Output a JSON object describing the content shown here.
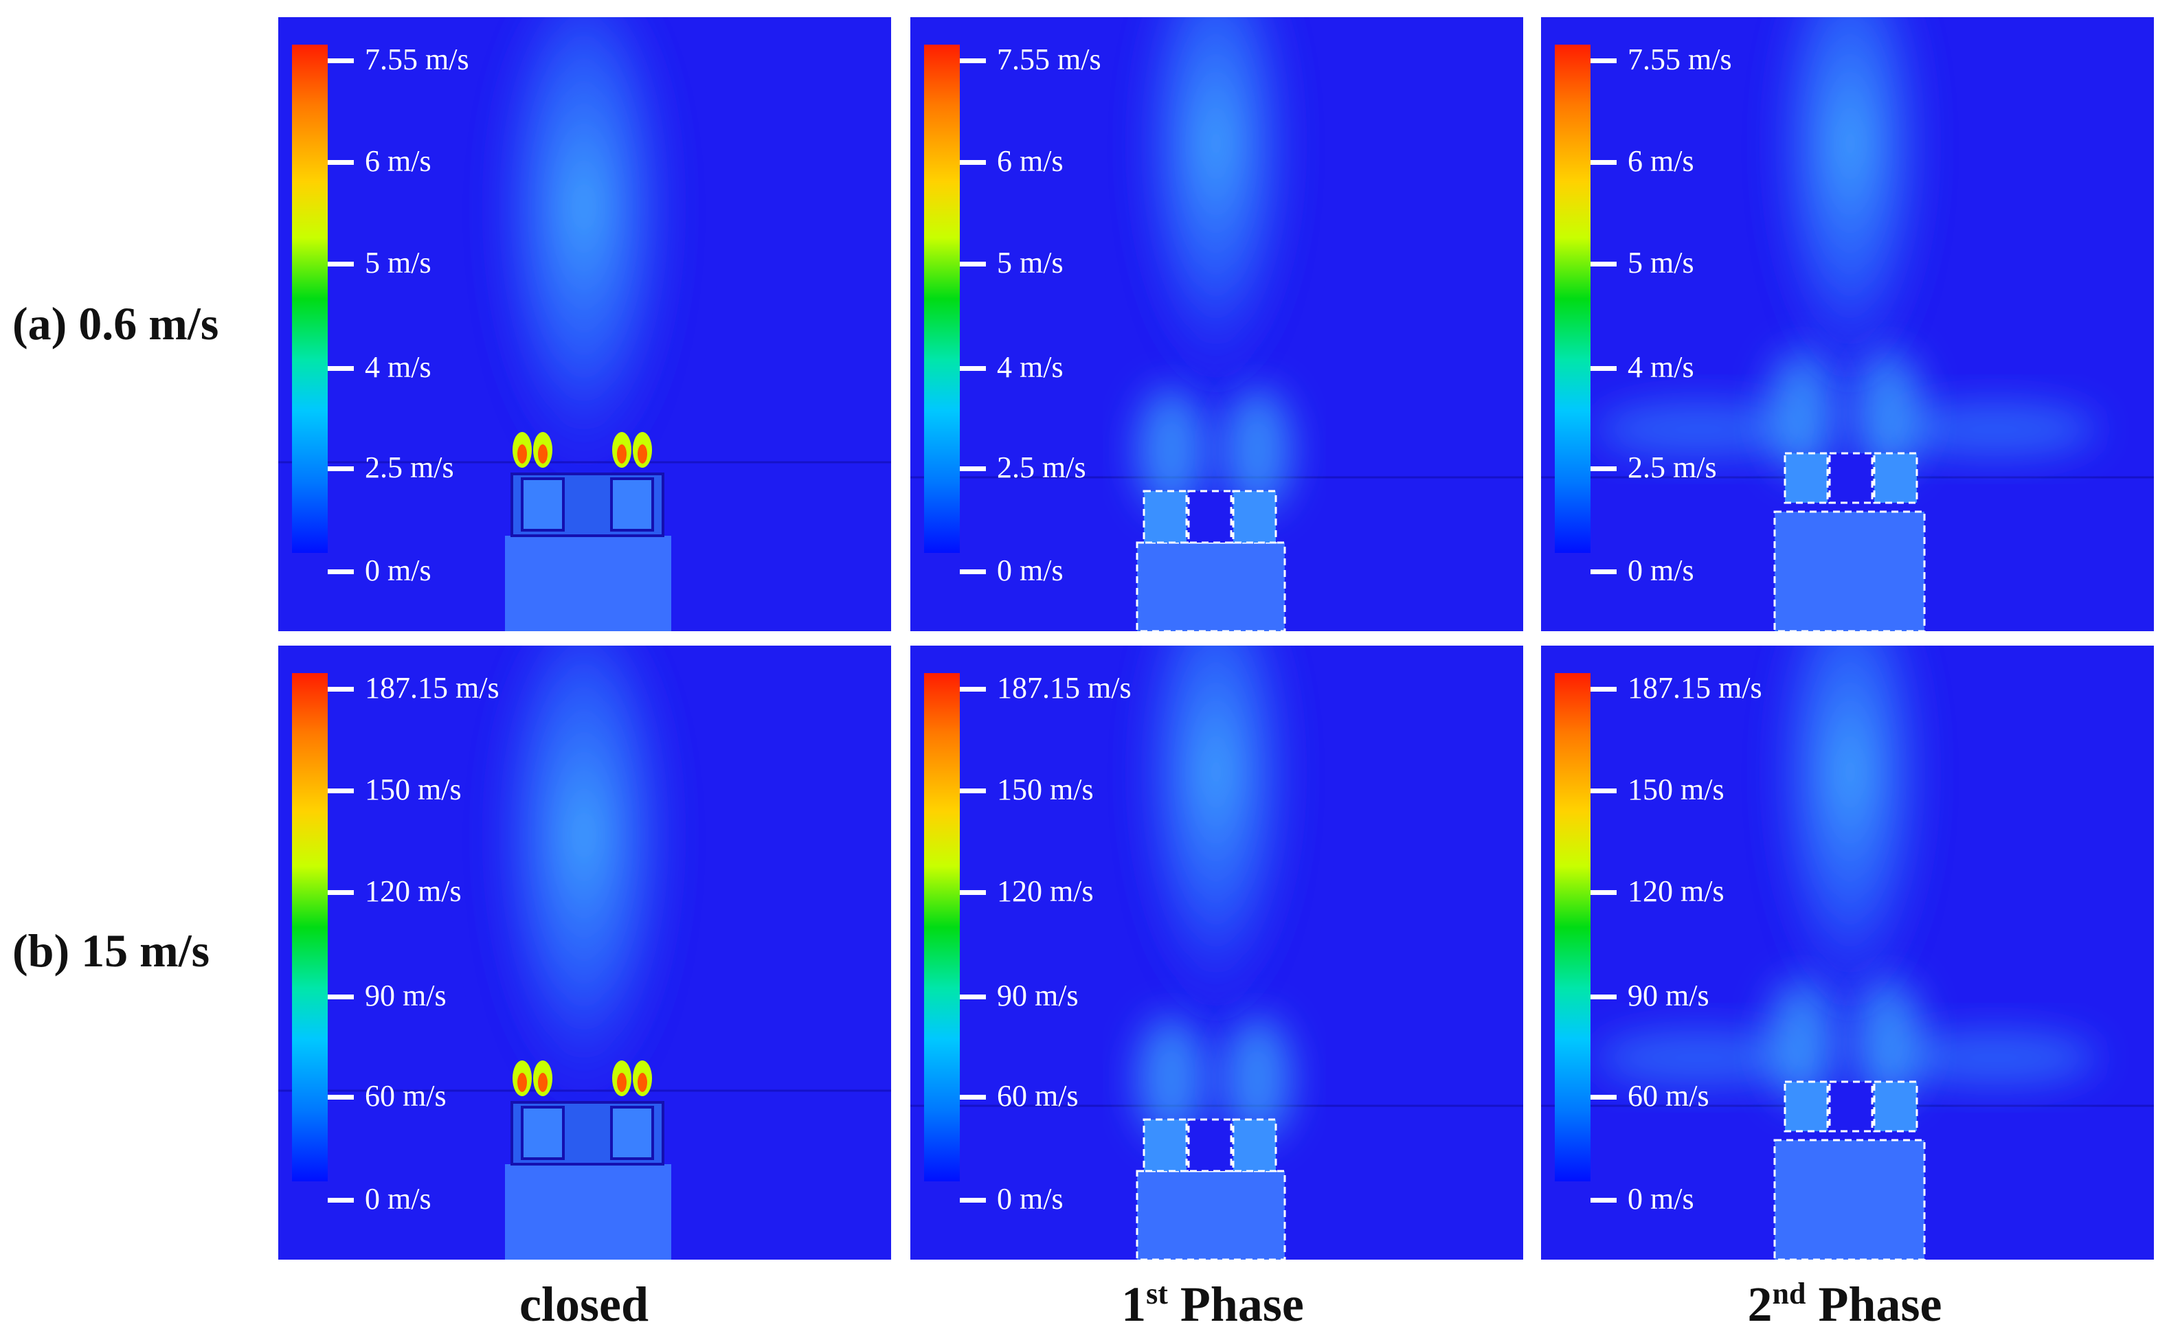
{
  "rows": [
    {
      "label": "(a) 0.6 m/s",
      "ticks": [
        "7.55 m/s",
        "6 m/s",
        "5 m/s",
        "4 m/s",
        "2.5 m/s",
        "0 m/s"
      ]
    },
    {
      "label": "(b) 15 m/s",
      "ticks": [
        "187.15 m/s",
        "150 m/s",
        "120 m/s",
        "90 m/s",
        "60 m/s",
        "0 m/s"
      ]
    }
  ],
  "columns": [
    {
      "label": "closed",
      "ordinal": "",
      "superscript": "",
      "rest": "",
      "variant": "closed"
    },
    {
      "label": "",
      "ordinal": "1",
      "superscript": "st",
      "rest": " Phase",
      "variant": "phase1"
    },
    {
      "label": "",
      "ordinal": "2",
      "superscript": "nd",
      "rest": " Phase",
      "variant": "phase2"
    }
  ],
  "colors": {
    "background_field": "#1e1cf2",
    "plume": "#3aa0ff",
    "outline": "#ffffff"
  }
}
